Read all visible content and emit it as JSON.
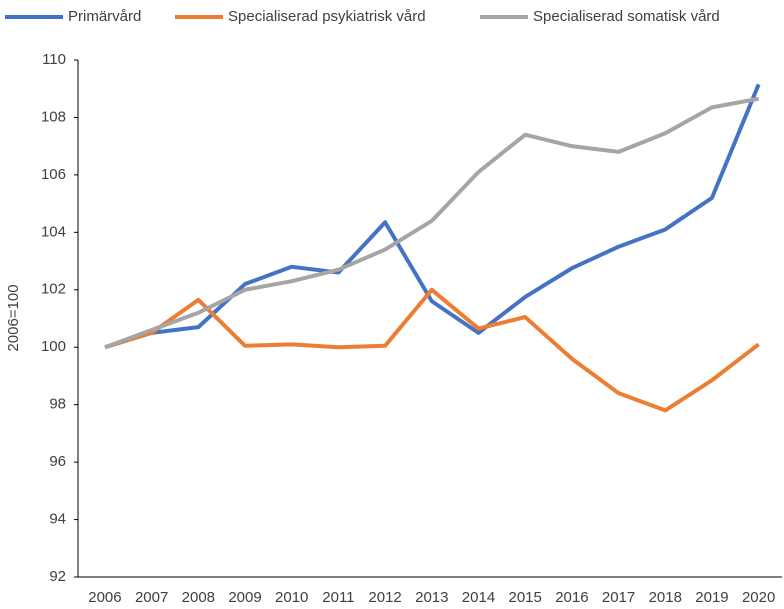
{
  "chart_data": {
    "type": "line",
    "categories": [
      "2006",
      "2007",
      "2008",
      "2009",
      "2010",
      "2011",
      "2012",
      "2013",
      "2014",
      "2015",
      "2016",
      "2017",
      "2018",
      "2019",
      "2020"
    ],
    "series": [
      {
        "name": "Primärvård",
        "color": "#4472c4",
        "values": [
          100,
          100.5,
          100.7,
          102.2,
          102.8,
          102.6,
          104.35,
          101.6,
          100.5,
          101.75,
          102.75,
          103.5,
          104.1,
          105.2,
          109.15
        ]
      },
      {
        "name": "Specialiserad psykiatrisk vård",
        "color": "#ed7d31",
        "values": [
          100,
          100.5,
          101.65,
          100.05,
          100.1,
          100,
          100.05,
          102,
          100.65,
          101.05,
          99.6,
          98.4,
          97.8,
          98.85,
          100.1
        ]
      },
      {
        "name": "Specialiserad somatisk vård",
        "color": "#a5a5a5",
        "values": [
          100,
          100.6,
          101.2,
          102,
          102.3,
          102.7,
          103.4,
          104.4,
          106.1,
          107.4,
          107,
          106.8,
          107.45,
          108.35,
          108.65
        ]
      }
    ],
    "y_label": "2006=100",
    "ylim": [
      92,
      110
    ],
    "yticks": [
      92,
      94,
      96,
      98,
      100,
      102,
      104,
      106,
      108,
      110
    ],
    "grid": false,
    "legend": "top"
  }
}
